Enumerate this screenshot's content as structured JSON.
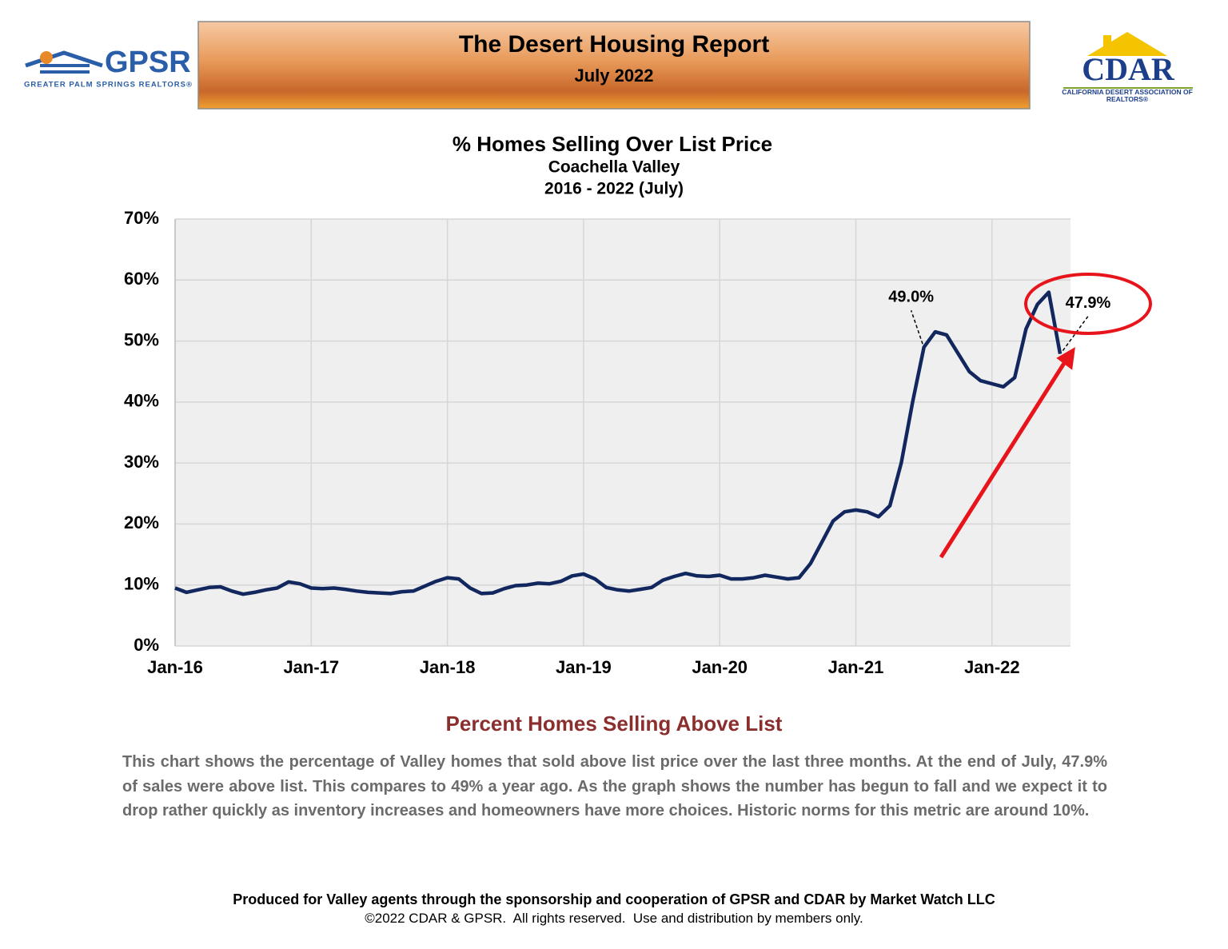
{
  "header": {
    "title": "The Desert Housing Report",
    "subtitle": "July 2022"
  },
  "logos": {
    "left_name": "GPSR",
    "left_tagline": "GREATER PALM SPRINGS REALTORS®",
    "right_name": "CDAR",
    "right_tagline": "CALIFORNIA DESERT ASSOCIATION OF REALTORS®"
  },
  "chart_data": {
    "type": "line",
    "title": "% Homes Selling Over List Price",
    "subtitle": "Coachella Valley",
    "period": "2016 - 2022 (July)",
    "categories": [
      "Jan-16",
      null,
      null,
      null,
      null,
      null,
      null,
      null,
      null,
      null,
      null,
      null,
      "Jan-17",
      null,
      null,
      null,
      null,
      null,
      null,
      null,
      null,
      null,
      null,
      null,
      "Jan-18",
      null,
      null,
      null,
      null,
      null,
      null,
      null,
      null,
      null,
      null,
      null,
      "Jan-19",
      null,
      null,
      null,
      null,
      null,
      null,
      null,
      null,
      null,
      null,
      null,
      "Jan-20",
      null,
      null,
      null,
      null,
      null,
      null,
      null,
      null,
      null,
      null,
      null,
      "Jan-21",
      null,
      null,
      null,
      null,
      null,
      null,
      null,
      null,
      null,
      null,
      null,
      "Jan-22",
      null,
      null,
      null,
      null,
      null,
      null
    ],
    "values": [
      9.5,
      8.8,
      9.2,
      9.6,
      9.7,
      9.0,
      8.5,
      8.8,
      9.2,
      9.5,
      10.5,
      10.2,
      9.5,
      9.4,
      9.5,
      9.3,
      9.0,
      8.8,
      8.7,
      8.6,
      8.9,
      9.0,
      9.8,
      10.6,
      11.2,
      11.0,
      9.5,
      8.6,
      8.7,
      9.4,
      9.9,
      10.0,
      10.3,
      10.2,
      10.6,
      11.5,
      11.8,
      11.0,
      9.6,
      9.2,
      9.0,
      9.3,
      9.6,
      10.8,
      11.4,
      11.9,
      11.5,
      11.4,
      11.6,
      11.0,
      11.0,
      11.2,
      11.6,
      11.3,
      11.0,
      11.2,
      13.5,
      17.0,
      20.5,
      22.0,
      22.3,
      22.0,
      21.2,
      23.0,
      30.0,
      40.0,
      49.0,
      51.5,
      51.0,
      48.0,
      45.0,
      43.5,
      43.0,
      42.5,
      44.0,
      52.0,
      56.0,
      58.0,
      47.9
    ],
    "value_labels": [
      null,
      null,
      null,
      null,
      null,
      null,
      null,
      null,
      null,
      null,
      null,
      null,
      null,
      null,
      null,
      null,
      null,
      null,
      null,
      null,
      null,
      null,
      null,
      null,
      null,
      null,
      null,
      null,
      null,
      null,
      null,
      null,
      null,
      null,
      null,
      null,
      null,
      null,
      null,
      null,
      null,
      null,
      null,
      null,
      null,
      null,
      null,
      null,
      null,
      null,
      null,
      null,
      null,
      null,
      null,
      null,
      null,
      null,
      null,
      null,
      null,
      null,
      null,
      null,
      null,
      null,
      "49.0%",
      null,
      null,
      null,
      null,
      null,
      null,
      null,
      null,
      null,
      null,
      null,
      "47.9%"
    ],
    "color": "#13275f",
    "ylim": [
      0,
      70
    ],
    "yticks": [
      {
        "value": 0,
        "label": "0%"
      },
      {
        "value": 10,
        "label": "10%"
      },
      {
        "value": 20,
        "label": "20%"
      },
      {
        "value": 30,
        "label": "30%"
      },
      {
        "value": 40,
        "label": "40%"
      },
      {
        "value": 50,
        "label": "50%"
      },
      {
        "value": 60,
        "label": "60%"
      },
      {
        "value": 70,
        "label": "70%"
      }
    ],
    "grid": true
  },
  "section_title": "Percent Homes Selling Above List",
  "description": "This chart shows the percentage of Valley homes that sold above list price over the last three months. At the end of July, 47.9% of sales were above list. This compares to 49% a year ago. As the graph shows the number has begun to fall and we expect it to drop rather quickly as inventory increases and homeowners have more choices. Historic norms for this metric are around 10%.",
  "footer": {
    "line1": "Produced for Valley agents through the sponsorship and cooperation of GPSR and CDAR by Market Watch LLC",
    "line2": "©2022 CDAR & GPSR.  All rights reserved.  Use and distribution by members only."
  }
}
